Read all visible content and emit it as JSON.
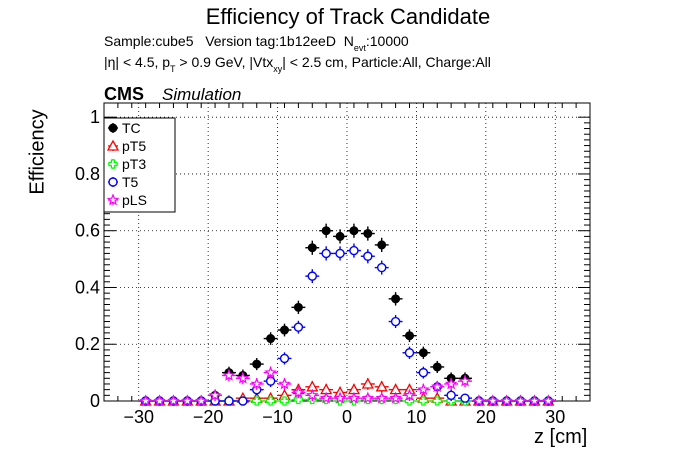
{
  "header": {
    "title": "Efficiency of Track Candidate",
    "info_line1": {
      "sample": "Sample:cube5",
      "version": "Version tag:1b12eeD",
      "nevt_label": "N",
      "nevt_sub": "evt",
      "nevt_value": ":10000"
    },
    "info_line2": {
      "eta": "|η| < 4.5, p",
      "pt_sub": "T",
      "pt_cut": " > 0.9 GeV, |Vtx",
      "vtx_sub": "xy",
      "rest": "| < 2.5 cm, Particle:All, Charge:All"
    },
    "cms_label": "CMS",
    "cms_sublabel": "Simulation"
  },
  "chart_data": {
    "type": "scatter",
    "title": "Efficiency of Track Candidate",
    "xlabel": "z [cm]",
    "ylabel": "Efficiency",
    "xlim": [
      -35,
      35
    ],
    "ylim": [
      0,
      1.05
    ],
    "x_ticks": [
      -30,
      -20,
      -10,
      0,
      10,
      20,
      30
    ],
    "y_ticks": [
      0,
      0.2,
      0.4,
      0.6,
      0.8,
      1
    ],
    "grid": true,
    "legend_position": "top-left",
    "bin_half_width": 1,
    "x": [
      -29,
      -27,
      -25,
      -23,
      -21,
      -19,
      -17,
      -15,
      -13,
      -11,
      -9,
      -7,
      -5,
      -3,
      -1,
      1,
      3,
      5,
      7,
      9,
      11,
      13,
      15,
      17,
      19,
      21,
      23,
      25,
      27,
      29
    ],
    "series": [
      {
        "name": "TC",
        "color": "#000000",
        "marker": "filled-circle",
        "values": [
          0,
          0,
          0,
          0,
          0,
          0.02,
          0.1,
          0.09,
          0.13,
          0.22,
          0.25,
          0.33,
          0.54,
          0.6,
          0.58,
          0.6,
          0.59,
          0.55,
          0.36,
          0.23,
          0.17,
          0.12,
          0.08,
          0.08,
          0,
          0,
          0,
          0,
          0,
          0
        ]
      },
      {
        "name": "pT5",
        "color": "#ff0000",
        "marker": "open-triangle",
        "values": [
          0,
          0,
          0,
          0,
          0,
          0,
          0,
          0.01,
          0.01,
          0.01,
          0.02,
          0.04,
          0.05,
          0.04,
          0.03,
          0.04,
          0.06,
          0.05,
          0.04,
          0.04,
          0.01,
          0.01,
          0,
          0,
          0,
          0,
          0,
          0,
          0,
          0
        ]
      },
      {
        "name": "pT3",
        "color": "#00ff00",
        "marker": "open-cross",
        "values": [
          0,
          0,
          0,
          0,
          0,
          0,
          0,
          0,
          0,
          0,
          0,
          0.005,
          0.005,
          0.005,
          0,
          0,
          0.005,
          0.005,
          0.005,
          0,
          0,
          0,
          0,
          0,
          0,
          0,
          0,
          0,
          0,
          0
        ]
      },
      {
        "name": "T5",
        "color": "#0000ff",
        "marker": "open-circle",
        "values": [
          0,
          0,
          0,
          0,
          0,
          0,
          0,
          0,
          0.04,
          0.07,
          0.15,
          0.26,
          0.44,
          0.52,
          0.52,
          0.53,
          0.51,
          0.47,
          0.28,
          0.17,
          0.1,
          0.05,
          0.02,
          0.01,
          0,
          0,
          0,
          0,
          0,
          0
        ]
      },
      {
        "name": "pLS",
        "color": "#ff00ff",
        "marker": "open-star",
        "values": [
          0,
          0,
          0,
          0,
          0,
          0.02,
          0.09,
          0.08,
          0.06,
          0.1,
          0.06,
          0.03,
          0.02,
          0.01,
          0.01,
          0.01,
          0.01,
          0.01,
          0.01,
          0.02,
          0.04,
          0.05,
          0.06,
          0.07,
          0,
          0,
          0,
          0,
          0,
          0
        ]
      }
    ]
  }
}
